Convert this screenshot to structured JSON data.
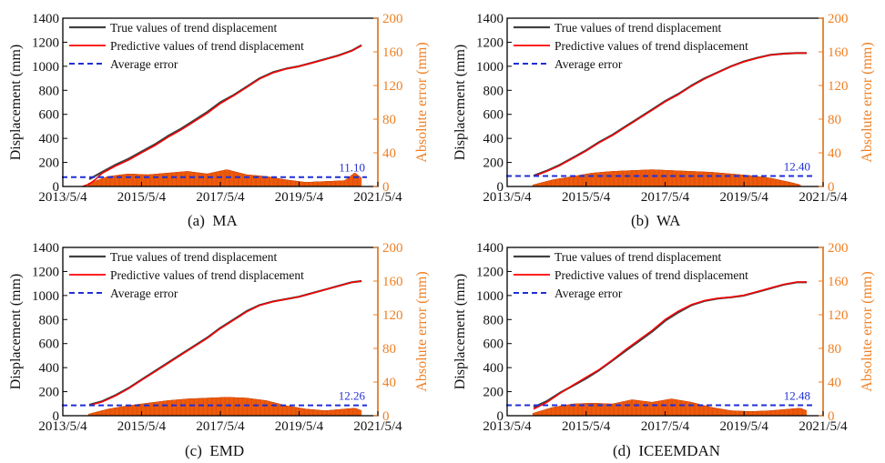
{
  "chart_data": [
    {
      "type": "line",
      "caption": "(a)  MA",
      "ylabel": "Displacement (mm)",
      "y2label": "Absolute error (mm)",
      "ylim": [
        0,
        1400
      ],
      "y2lim": [
        0,
        200
      ],
      "yticks": [
        0,
        200,
        400,
        600,
        800,
        1000,
        1200,
        1400
      ],
      "y2ticks": [
        0,
        40,
        80,
        120,
        160,
        200
      ],
      "xlim": [
        "2013-05-04",
        "2021-05-04"
      ],
      "xticks": [
        "2013/5/4",
        "2015/5/4",
        "2017/5/4",
        "2019/5/4",
        "2021/5/4"
      ],
      "legend_position": "top-left",
      "legend": [
        "True values of trend displacement",
        "Predictive values of trend displacement",
        "Average error"
      ],
      "average_error": 11.1,
      "average_error_label": "11.10",
      "series": [
        {
          "name": "True values of trend displacement",
          "color": "#404040",
          "axis": "left",
          "x": [
            "2014-01-04",
            "2014-05-04",
            "2014-09-04",
            "2015-01-04",
            "2015-05-04",
            "2015-09-04",
            "2016-01-04",
            "2016-05-04",
            "2016-09-04",
            "2017-01-04",
            "2017-05-04",
            "2017-09-04",
            "2018-01-04",
            "2018-05-04",
            "2018-09-04",
            "2019-01-04",
            "2019-05-04",
            "2019-09-04",
            "2020-01-04",
            "2020-05-04",
            "2020-09-04",
            "2020-12-04"
          ],
          "y": [
            60,
            120,
            180,
            230,
            290,
            350,
            420,
            480,
            550,
            620,
            700,
            760,
            830,
            900,
            950,
            980,
            1000,
            1030,
            1060,
            1090,
            1130,
            1175
          ]
        },
        {
          "name": "Predictive values of trend displacement",
          "color": "#ff0000",
          "axis": "left",
          "x": [
            "2013-11-04",
            "2014-01-04",
            "2014-03-04",
            "2014-05-04",
            "2014-09-04",
            "2015-01-04",
            "2015-05-04",
            "2015-09-04",
            "2016-01-04",
            "2016-05-04",
            "2016-09-04",
            "2017-01-04",
            "2017-05-04",
            "2017-09-04",
            "2018-01-04",
            "2018-05-04",
            "2018-09-04",
            "2019-01-04",
            "2019-05-04",
            "2019-09-04",
            "2020-01-04",
            "2020-05-04",
            "2020-09-04",
            "2020-12-04"
          ],
          "y": [
            0,
            20,
            60,
            110,
            170,
            220,
            280,
            340,
            410,
            470,
            540,
            610,
            690,
            755,
            825,
            895,
            945,
            978,
            1000,
            1028,
            1058,
            1088,
            1128,
            1172
          ]
        },
        {
          "name": "Absolute error",
          "color": "#ff6a13",
          "axis": "right",
          "kind": "bar",
          "x": [
            "2014-01-04",
            "2014-07-04",
            "2015-01-04",
            "2015-07-04",
            "2016-01-04",
            "2016-07-04",
            "2017-01-04",
            "2017-07-04",
            "2018-01-04",
            "2018-07-04",
            "2019-01-04",
            "2019-07-04",
            "2020-01-04",
            "2020-07-04",
            "2020-10-04",
            "2020-12-04"
          ],
          "y": [
            4,
            12,
            15,
            14,
            16,
            18,
            15,
            20,
            14,
            12,
            8,
            5,
            6,
            7,
            16,
            10
          ]
        }
      ]
    },
    {
      "type": "line",
      "caption": "(b)  WA",
      "ylabel": "Displacement (mm)",
      "y2label": "Absolute error (mm)",
      "ylim": [
        0,
        1400
      ],
      "y2lim": [
        0,
        200
      ],
      "yticks": [
        0,
        200,
        400,
        600,
        800,
        1000,
        1200,
        1400
      ],
      "y2ticks": [
        0,
        40,
        80,
        120,
        160,
        200
      ],
      "xlim": [
        "2013-05-04",
        "2021-05-04"
      ],
      "xticks": [
        "2013/5/4",
        "2015/5/4",
        "2017/5/4",
        "2019/5/4",
        "2021/5/4"
      ],
      "legend_position": "top-left",
      "legend": [
        "True values of trend displacement",
        "Predictive values of trend displacement",
        "Average error"
      ],
      "average_error": 12.4,
      "average_error_label": "12.40",
      "series": [
        {
          "name": "True values of trend displacement",
          "color": "#404040",
          "axis": "left",
          "x": [
            "2014-01-04",
            "2014-05-04",
            "2014-09-04",
            "2015-01-04",
            "2015-05-04",
            "2015-09-04",
            "2016-01-04",
            "2016-05-04",
            "2016-09-04",
            "2017-01-04",
            "2017-05-04",
            "2017-09-04",
            "2018-01-04",
            "2018-05-04",
            "2018-09-04",
            "2019-01-04",
            "2019-05-04",
            "2019-09-04",
            "2020-01-04",
            "2020-05-04",
            "2020-09-04",
            "2020-12-04"
          ],
          "y": [
            90,
            130,
            180,
            240,
            300,
            370,
            430,
            500,
            570,
            640,
            710,
            770,
            840,
            900,
            950,
            1000,
            1040,
            1070,
            1095,
            1105,
            1110,
            1110
          ]
        },
        {
          "name": "Predictive values of trend displacement",
          "color": "#ff0000",
          "axis": "left",
          "x": [
            "2014-01-04",
            "2014-05-04",
            "2014-09-04",
            "2015-01-04",
            "2015-05-04",
            "2015-09-04",
            "2016-01-04",
            "2016-05-04",
            "2016-09-04",
            "2017-01-04",
            "2017-05-04",
            "2017-09-04",
            "2018-01-04",
            "2018-05-04",
            "2018-09-04",
            "2019-01-04",
            "2019-05-04",
            "2019-09-04",
            "2020-01-04",
            "2020-05-04",
            "2020-09-04",
            "2020-12-04"
          ],
          "y": [
            85,
            125,
            175,
            235,
            295,
            365,
            425,
            495,
            565,
            635,
            705,
            765,
            835,
            895,
            948,
            998,
            1038,
            1068,
            1094,
            1104,
            1110,
            1110
          ]
        },
        {
          "name": "Absolute error",
          "color": "#ff6a13",
          "axis": "right",
          "kind": "bar",
          "x": [
            "2014-01-04",
            "2014-07-04",
            "2015-01-04",
            "2015-07-04",
            "2016-01-04",
            "2016-07-04",
            "2017-01-04",
            "2017-07-04",
            "2018-01-04",
            "2018-07-04",
            "2019-01-04",
            "2019-07-04",
            "2020-01-04",
            "2020-07-04",
            "2020-10-04"
          ],
          "y": [
            2,
            8,
            12,
            16,
            18,
            19,
            20,
            19,
            18,
            17,
            15,
            13,
            10,
            5,
            2
          ]
        }
      ]
    },
    {
      "type": "line",
      "caption": "(c)  EMD",
      "ylabel": "Displacement (mm)",
      "y2label": "Absolute error (mm)",
      "ylim": [
        0,
        1400
      ],
      "y2lim": [
        0,
        200
      ],
      "yticks": [
        0,
        200,
        400,
        600,
        800,
        1000,
        1200,
        1400
      ],
      "y2ticks": [
        0,
        40,
        80,
        120,
        160,
        200
      ],
      "xlim": [
        "2013-05-04",
        "2021-05-04"
      ],
      "xticks": [
        "2013/5/4",
        "2015/5/4",
        "2017/5/4",
        "2019/5/4",
        "2021/5/4"
      ],
      "legend_position": "top-left",
      "legend": [
        "True values of trend displacement",
        "Predictive values of trend displacement",
        "Average error"
      ],
      "average_error": 12.26,
      "average_error_label": "12.26",
      "series": [
        {
          "name": "True values of trend displacement",
          "color": "#404040",
          "axis": "left",
          "x": [
            "2014-01-04",
            "2014-05-04",
            "2014-09-04",
            "2015-01-04",
            "2015-05-04",
            "2015-09-04",
            "2016-01-04",
            "2016-05-04",
            "2016-09-04",
            "2017-01-04",
            "2017-05-04",
            "2017-09-04",
            "2018-01-04",
            "2018-05-04",
            "2018-09-04",
            "2019-01-04",
            "2019-05-04",
            "2019-09-04",
            "2020-01-04",
            "2020-05-04",
            "2020-09-04",
            "2020-12-04"
          ],
          "y": [
            90,
            120,
            170,
            230,
            300,
            370,
            440,
            510,
            580,
            650,
            730,
            800,
            870,
            920,
            950,
            970,
            990,
            1020,
            1050,
            1080,
            1110,
            1120
          ]
        },
        {
          "name": "Predictive values of trend displacement",
          "color": "#ff0000",
          "axis": "left",
          "x": [
            "2014-01-04",
            "2014-05-04",
            "2014-09-04",
            "2015-01-04",
            "2015-05-04",
            "2015-09-04",
            "2016-01-04",
            "2016-05-04",
            "2016-09-04",
            "2017-01-04",
            "2017-05-04",
            "2017-09-04",
            "2018-01-04",
            "2018-05-04",
            "2018-09-04",
            "2019-01-04",
            "2019-05-04",
            "2019-09-04",
            "2020-01-04",
            "2020-05-04",
            "2020-09-04",
            "2020-12-04"
          ],
          "y": [
            85,
            115,
            165,
            225,
            295,
            365,
            435,
            505,
            575,
            645,
            725,
            795,
            865,
            918,
            949,
            969,
            989,
            1019,
            1049,
            1079,
            1109,
            1120
          ]
        },
        {
          "name": "Absolute error",
          "color": "#ff6a13",
          "axis": "right",
          "kind": "bar",
          "x": [
            "2014-01-04",
            "2014-07-04",
            "2015-01-04",
            "2015-07-04",
            "2016-01-04",
            "2016-07-04",
            "2017-01-04",
            "2017-07-04",
            "2018-01-04",
            "2018-07-04",
            "2019-01-04",
            "2019-07-04",
            "2020-01-04",
            "2020-07-04",
            "2020-10-04",
            "2020-12-04"
          ],
          "y": [
            2,
            8,
            12,
            15,
            18,
            20,
            21,
            22,
            21,
            18,
            12,
            8,
            6,
            8,
            9,
            6
          ]
        }
      ]
    },
    {
      "type": "line",
      "caption": "(d)  ICEEMDAN",
      "ylabel": "Displacement (mm)",
      "y2label": "Absolute error (mm)",
      "ylim": [
        0,
        1400
      ],
      "y2lim": [
        0,
        200
      ],
      "yticks": [
        0,
        200,
        400,
        600,
        800,
        1000,
        1200,
        1400
      ],
      "y2ticks": [
        0,
        40,
        80,
        120,
        160,
        200
      ],
      "xlim": [
        "2013-05-04",
        "2021-05-04"
      ],
      "xticks": [
        "2013/5/4",
        "2015/5/4",
        "2017/5/4",
        "2019/5/4",
        "2021/5/4"
      ],
      "legend_position": "top-left",
      "legend": [
        "True values of trend displacement",
        "Predictive values of trend displacement",
        "Average error"
      ],
      "average_error": 12.48,
      "average_error_label": "12.48",
      "series": [
        {
          "name": "True values of trend displacement",
          "color": "#404040",
          "axis": "left",
          "x": [
            "2014-01-04",
            "2014-05-04",
            "2014-09-04",
            "2015-01-04",
            "2015-05-04",
            "2015-09-04",
            "2016-01-04",
            "2016-05-04",
            "2016-09-04",
            "2017-01-04",
            "2017-05-04",
            "2017-09-04",
            "2018-01-04",
            "2018-05-04",
            "2018-09-04",
            "2019-01-04",
            "2019-05-04",
            "2019-09-04",
            "2020-01-04",
            "2020-05-04",
            "2020-09-04",
            "2020-12-04"
          ],
          "y": [
            70,
            120,
            190,
            250,
            310,
            380,
            460,
            540,
            620,
            700,
            790,
            860,
            920,
            955,
            975,
            985,
            1000,
            1030,
            1060,
            1090,
            1110,
            1110
          ]
        },
        {
          "name": "Predictive values of trend displacement",
          "color": "#ff0000",
          "axis": "left",
          "x": [
            "2014-01-04",
            "2014-05-04",
            "2014-09-04",
            "2015-01-04",
            "2015-05-04",
            "2015-09-04",
            "2016-01-04",
            "2016-05-04",
            "2016-09-04",
            "2017-01-04",
            "2017-05-04",
            "2017-09-04",
            "2018-01-04",
            "2018-05-04",
            "2018-09-04",
            "2019-01-04",
            "2019-05-04",
            "2019-09-04",
            "2020-01-04",
            "2020-05-04",
            "2020-09-04",
            "2020-12-04"
          ],
          "y": [
            55,
            110,
            185,
            255,
            320,
            385,
            465,
            550,
            630,
            710,
            800,
            870,
            925,
            958,
            977,
            987,
            1002,
            1032,
            1062,
            1092,
            1112,
            1112
          ]
        },
        {
          "name": "Absolute error",
          "color": "#ff6a13",
          "axis": "right",
          "kind": "bar",
          "x": [
            "2014-01-04",
            "2014-07-04",
            "2015-01-04",
            "2015-07-04",
            "2016-01-04",
            "2016-07-04",
            "2017-01-04",
            "2017-07-04",
            "2018-01-04",
            "2018-07-04",
            "2019-01-04",
            "2019-07-04",
            "2020-01-04",
            "2020-07-04",
            "2020-10-04",
            "2020-12-04"
          ],
          "y": [
            3,
            10,
            14,
            15,
            14,
            19,
            16,
            20,
            16,
            10,
            6,
            5,
            6,
            8,
            9,
            6
          ]
        }
      ]
    }
  ],
  "colors": {
    "true_line": "#404040",
    "pred_line": "#ff0000",
    "avg_line": "#1f2fd6",
    "bars": "#ff6a13",
    "bar_edge": "#c43a00",
    "right_axis": "#f07f22"
  }
}
